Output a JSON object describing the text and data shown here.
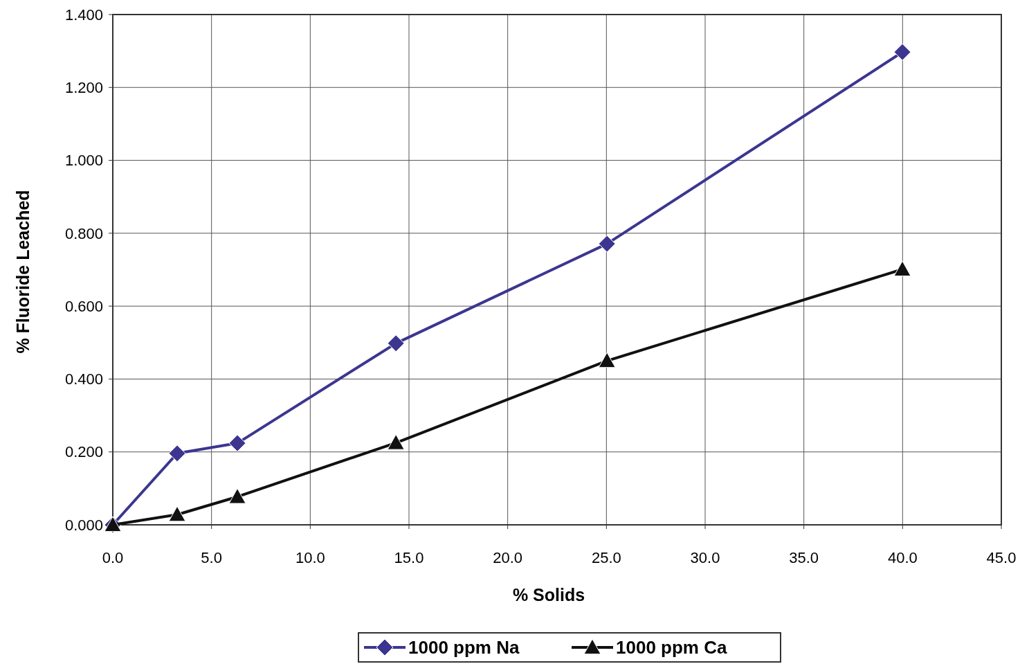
{
  "chart_data": {
    "type": "line",
    "xlabel": "% Solids",
    "ylabel": "% Fluoride Leached",
    "series": [
      {
        "name": "1000 ppm Na",
        "color": "#3c3690",
        "marker": "diamond",
        "x": [
          0,
          3.26,
          6.31,
          14.34,
          25.03,
          39.99
        ],
        "values": [
          0,
          0.196,
          0.224,
          0.498,
          0.771,
          1.297
        ]
      },
      {
        "name": "1000 ppm Ca",
        "color": "#111111",
        "marker": "triangle",
        "x": [
          0,
          3.26,
          6.31,
          14.34,
          25.03,
          39.99
        ],
        "values": [
          0,
          0.028,
          0.077,
          0.225,
          0.45,
          0.701
        ]
      }
    ],
    "xlim": [
      0,
      45
    ],
    "ylim": [
      0,
      1.4
    ],
    "xticks": [
      {
        "value": 0,
        "label": "0.0"
      },
      {
        "value": 5,
        "label": "5.0"
      },
      {
        "value": 10,
        "label": "10.0"
      },
      {
        "value": 15,
        "label": "15.0"
      },
      {
        "value": 20,
        "label": "20.0"
      },
      {
        "value": 25,
        "label": "25.0"
      },
      {
        "value": 30,
        "label": "30.0"
      },
      {
        "value": 35,
        "label": "35.0"
      },
      {
        "value": 40,
        "label": "40.0"
      },
      {
        "value": 45,
        "label": "45.0"
      }
    ],
    "yticks": [
      {
        "value": 0,
        "label": "0.000"
      },
      {
        "value": 0.2,
        "label": "0.200"
      },
      {
        "value": 0.4,
        "label": "0.400"
      },
      {
        "value": 0.6,
        "label": "0.600"
      },
      {
        "value": 0.8,
        "label": "0.800"
      },
      {
        "value": 1.0,
        "label": "1.000"
      },
      {
        "value": 1.2,
        "label": "1.200"
      },
      {
        "value": 1.4,
        "label": "1.400"
      }
    ],
    "grid": true,
    "legend": "bottom",
    "line_style": "solid"
  }
}
